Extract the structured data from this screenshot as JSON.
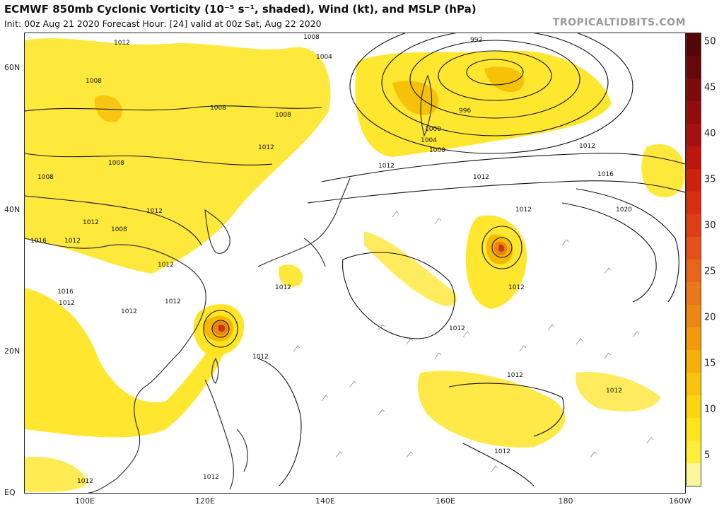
{
  "header": {
    "title": "ECMWF 850mb Cyclonic Vorticity (10⁻⁵ s⁻¹, shaded), Wind (kt), and MSLP (hPa)",
    "subtitle": "Init: 00z Aug 21 2020   Forecast Hour: [24]   valid at 00z Sat, Aug 22 2020",
    "brand": "TROPICALTIDBITS.COM"
  },
  "map": {
    "lat_labels": [
      "60N",
      "40N",
      "20N",
      "EQ"
    ],
    "lon_labels": [
      "100E",
      "120E",
      "140E",
      "160E",
      "180",
      "160W"
    ],
    "contour_labels": [
      "1012",
      "1008",
      "1008",
      "1008",
      "1012",
      "1008",
      "1008",
      "1012",
      "1012",
      "1008",
      "1016",
      "1012",
      "1012",
      "1012",
      "1016",
      "1012",
      "1012",
      "1012",
      "1012",
      "1012",
      "1012",
      "1012",
      "1008",
      "1004",
      "992",
      "996",
      "1000",
      "1004",
      "1008",
      "1012",
      "1012",
      "1016",
      "1020",
      "1012",
      "1012",
      "1012",
      "1012",
      "1012",
      "1012"
    ],
    "shade_colors": {
      "light": "#ffe41a",
      "mid": "#f5b800",
      "dark": "#e8851a",
      "deep": "#cc3300"
    }
  },
  "colorbar": {
    "ticks": [
      "50",
      "45",
      "40",
      "35",
      "30",
      "25",
      "20",
      "15",
      "10",
      "5"
    ],
    "colors": [
      "#fdf59a",
      "#ffef3a",
      "#ffe41a",
      "#fcd410",
      "#f9c20c",
      "#f5ae0a",
      "#f29a08",
      "#ee8612",
      "#eb7818",
      "#e8651a",
      "#e4521a",
      "#df3e14",
      "#d8300e",
      "#cc220c",
      "#bd160c",
      "#a80f0f",
      "#930c0c",
      "#7c0a0a",
      "#660808",
      "#520606"
    ]
  }
}
